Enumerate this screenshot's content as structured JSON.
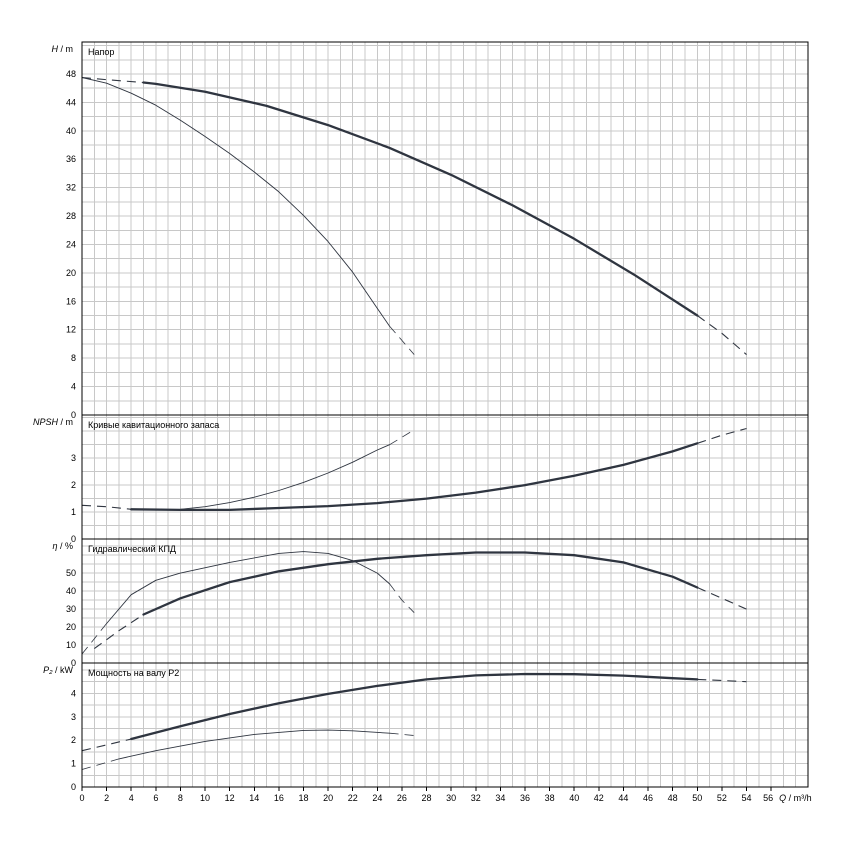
{
  "chart_data": {
    "type": "line",
    "x_axis": {
      "range": [
        0,
        59
      ],
      "ticks": [
        0,
        2,
        4,
        6,
        8,
        10,
        12,
        14,
        16,
        18,
        20,
        22,
        24,
        26,
        28,
        30,
        32,
        34,
        36,
        38,
        40,
        42,
        44,
        46,
        48,
        50,
        52,
        54,
        56
      ],
      "label_var": "Q",
      "label_unit": "m³/h"
    },
    "panels": [
      {
        "id": "head",
        "title": "Напор",
        "y_var": "H",
        "y_unit": "m",
        "ylim": [
          0,
          52.5
        ],
        "yticks": [
          0,
          4,
          8,
          12,
          16,
          20,
          24,
          28,
          32,
          36,
          40,
          44,
          48
        ],
        "series": [
          {
            "weight": "thick",
            "solid": [
              [
                5,
                46.8
              ],
              [
                6,
                46.6
              ],
              [
                10,
                45.5
              ],
              [
                15,
                43.5
              ],
              [
                20,
                40.8
              ],
              [
                25,
                37.6
              ],
              [
                30,
                33.8
              ],
              [
                35,
                29.5
              ],
              [
                40,
                24.8
              ],
              [
                45,
                19.6
              ],
              [
                50,
                14
              ]
            ],
            "dashed": [
              [
                0,
                47.5
              ],
              [
                2,
                47.2
              ],
              [
                5,
                46.8
              ]
            ],
            "dashed_end": [
              [
                50,
                14
              ],
              [
                52,
                11.5
              ],
              [
                54,
                8.5
              ]
            ]
          },
          {
            "weight": "thin",
            "solid": [
              [
                0,
                47.5
              ],
              [
                2,
                46.7
              ],
              [
                4,
                45.3
              ],
              [
                6,
                43.6
              ],
              [
                8,
                41.5
              ],
              [
                10,
                39.2
              ],
              [
                12,
                36.8
              ],
              [
                14,
                34.2
              ],
              [
                16,
                31.4
              ],
              [
                18,
                28.1
              ],
              [
                20,
                24.4
              ],
              [
                22,
                20.1
              ],
              [
                24,
                15
              ],
              [
                25,
                12.5
              ]
            ],
            "dashed": [],
            "dashed_end": [
              [
                25,
                12.5
              ],
              [
                27,
                8.5
              ]
            ]
          }
        ]
      },
      {
        "id": "npsh",
        "title": "Кривые кавитационного запаса",
        "y_var": "NPSH",
        "y_unit": "m",
        "ylim": [
          0,
          4.6
        ],
        "yticks": [
          0,
          1,
          2,
          3
        ],
        "series": [
          {
            "weight": "thick",
            "solid": [
              [
                4,
                1.1
              ],
              [
                8,
                1.08
              ],
              [
                12,
                1.08
              ],
              [
                16,
                1.15
              ],
              [
                20,
                1.22
              ],
              [
                24,
                1.33
              ],
              [
                28,
                1.5
              ],
              [
                32,
                1.72
              ],
              [
                36,
                2
              ],
              [
                40,
                2.35
              ],
              [
                44,
                2.75
              ],
              [
                48,
                3.25
              ],
              [
                50,
                3.55
              ]
            ],
            "dashed": [
              [
                0,
                1.25
              ],
              [
                2,
                1.2
              ],
              [
                4,
                1.1
              ]
            ],
            "dashed_end": [
              [
                50,
                3.55
              ],
              [
                52,
                3.85
              ],
              [
                54,
                4.1
              ]
            ]
          },
          {
            "weight": "thin",
            "solid": [
              [
                6,
                1.08
              ],
              [
                8,
                1.1
              ],
              [
                10,
                1.2
              ],
              [
                12,
                1.35
              ],
              [
                14,
                1.55
              ],
              [
                16,
                1.8
              ],
              [
                18,
                2.1
              ],
              [
                20,
                2.45
              ],
              [
                22,
                2.85
              ],
              [
                24,
                3.3
              ],
              [
                25,
                3.5
              ]
            ],
            "dashed": [],
            "dashed_end": [
              [
                25,
                3.5
              ],
              [
                27,
                4.05
              ]
            ]
          }
        ]
      },
      {
        "id": "efficiency",
        "title": "Гидравлический КПД",
        "y_var": "η",
        "y_unit": "%",
        "ylim": [
          0,
          69
        ],
        "yticks": [
          0,
          10,
          20,
          30,
          40,
          50
        ],
        "series": [
          {
            "weight": "thick",
            "solid": [
              [
                5,
                27
              ],
              [
                8,
                36
              ],
              [
                12,
                45
              ],
              [
                16,
                51
              ],
              [
                20,
                55
              ],
              [
                24,
                58
              ],
              [
                28,
                60
              ],
              [
                32,
                61.5
              ],
              [
                36,
                61.5
              ],
              [
                40,
                60
              ],
              [
                44,
                56
              ],
              [
                48,
                48
              ],
              [
                50,
                42
              ]
            ],
            "dashed": [
              [
                1,
                8
              ],
              [
                3,
                18
              ],
              [
                5,
                27
              ]
            ],
            "dashed_end": [
              [
                50,
                42
              ],
              [
                52,
                36
              ],
              [
                54,
                30
              ]
            ]
          },
          {
            "weight": "thin",
            "solid": [
              [
                2,
                22
              ],
              [
                4,
                38
              ],
              [
                6,
                46
              ],
              [
                8,
                50
              ],
              [
                12,
                56
              ],
              [
                16,
                61
              ],
              [
                18,
                62
              ],
              [
                20,
                61
              ],
              [
                22,
                57
              ],
              [
                24,
                50
              ],
              [
                25,
                44
              ]
            ],
            "dashed": [
              [
                0,
                5
              ],
              [
                2,
                22
              ]
            ],
            "dashed_end": [
              [
                25,
                44
              ],
              [
                26,
                35
              ],
              [
                27,
                28
              ]
            ]
          }
        ]
      },
      {
        "id": "power",
        "title": "Мощность на валу P2",
        "y_var": "P₂",
        "y_unit": "kW",
        "ylim": [
          0,
          5.3
        ],
        "yticks": [
          0,
          1,
          2,
          3,
          4
        ],
        "series": [
          {
            "weight": "thick",
            "solid": [
              [
                4,
                2.05
              ],
              [
                8,
                2.6
              ],
              [
                12,
                3.12
              ],
              [
                16,
                3.58
              ],
              [
                20,
                3.98
              ],
              [
                24,
                4.32
              ],
              [
                28,
                4.6
              ],
              [
                32,
                4.77
              ],
              [
                36,
                4.83
              ],
              [
                40,
                4.82
              ],
              [
                44,
                4.76
              ],
              [
                48,
                4.65
              ],
              [
                50,
                4.6
              ]
            ],
            "dashed": [
              [
                0,
                1.55
              ],
              [
                2,
                1.8
              ],
              [
                4,
                2.05
              ]
            ],
            "dashed_end": [
              [
                50,
                4.6
              ],
              [
                52,
                4.55
              ],
              [
                54,
                4.5
              ]
            ]
          },
          {
            "weight": "thin",
            "solid": [
              [
                3,
                1.2
              ],
              [
                6,
                1.55
              ],
              [
                10,
                1.95
              ],
              [
                14,
                2.25
              ],
              [
                18,
                2.42
              ],
              [
                20,
                2.43
              ],
              [
                22,
                2.4
              ],
              [
                25,
                2.3
              ]
            ],
            "dashed": [
              [
                0,
                0.75
              ],
              [
                3,
                1.2
              ]
            ],
            "dashed_end": [
              [
                25,
                2.3
              ],
              [
                27,
                2.2
              ]
            ]
          }
        ]
      }
    ]
  }
}
